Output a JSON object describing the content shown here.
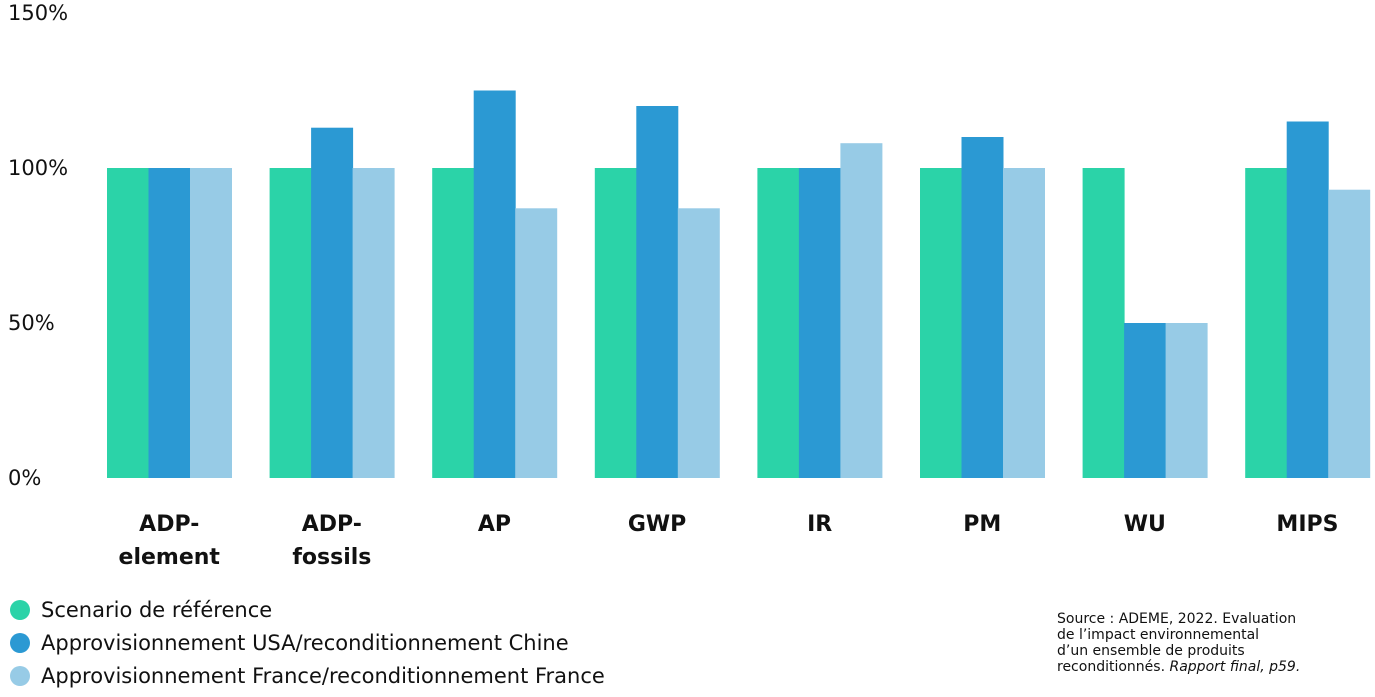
{
  "chart_data": {
    "type": "bar",
    "categories": [
      [
        "ADP-",
        "element"
      ],
      [
        "ADP-",
        "fossils"
      ],
      [
        "AP"
      ],
      [
        "GWP"
      ],
      [
        "IR"
      ],
      [
        "PM"
      ],
      [
        "WU"
      ],
      [
        "MIPS"
      ]
    ],
    "series": [
      {
        "name": "Scenario de référence",
        "color": "#2bd3a8",
        "values": [
          100,
          100,
          100,
          100,
          100,
          100,
          100,
          100
        ]
      },
      {
        "name": "Approvisionnement USA/reconditionnement Chine",
        "color": "#2b99d3",
        "values": [
          100,
          113,
          125,
          120,
          100,
          110,
          50,
          115
        ]
      },
      {
        "name": "Approvisionnement France/reconditionnement France",
        "color": "#97cbe6",
        "values": [
          100,
          100,
          87,
          87,
          108,
          100,
          50,
          93
        ]
      }
    ],
    "y_ticks": [
      "0%",
      "50%",
      "100%",
      "150%"
    ],
    "y_tick_values": [
      0,
      50,
      100,
      150
    ],
    "ylim": [
      0,
      150
    ],
    "grid": false,
    "legend_position": "bottom-left"
  },
  "source": {
    "lines": [
      "Source : ADEME, 2022. Evaluation",
      "de l’impact environnemental",
      "d’un ensemble de produits",
      "reconditionnés. "
    ],
    "italic": "Rapport final, p59."
  }
}
